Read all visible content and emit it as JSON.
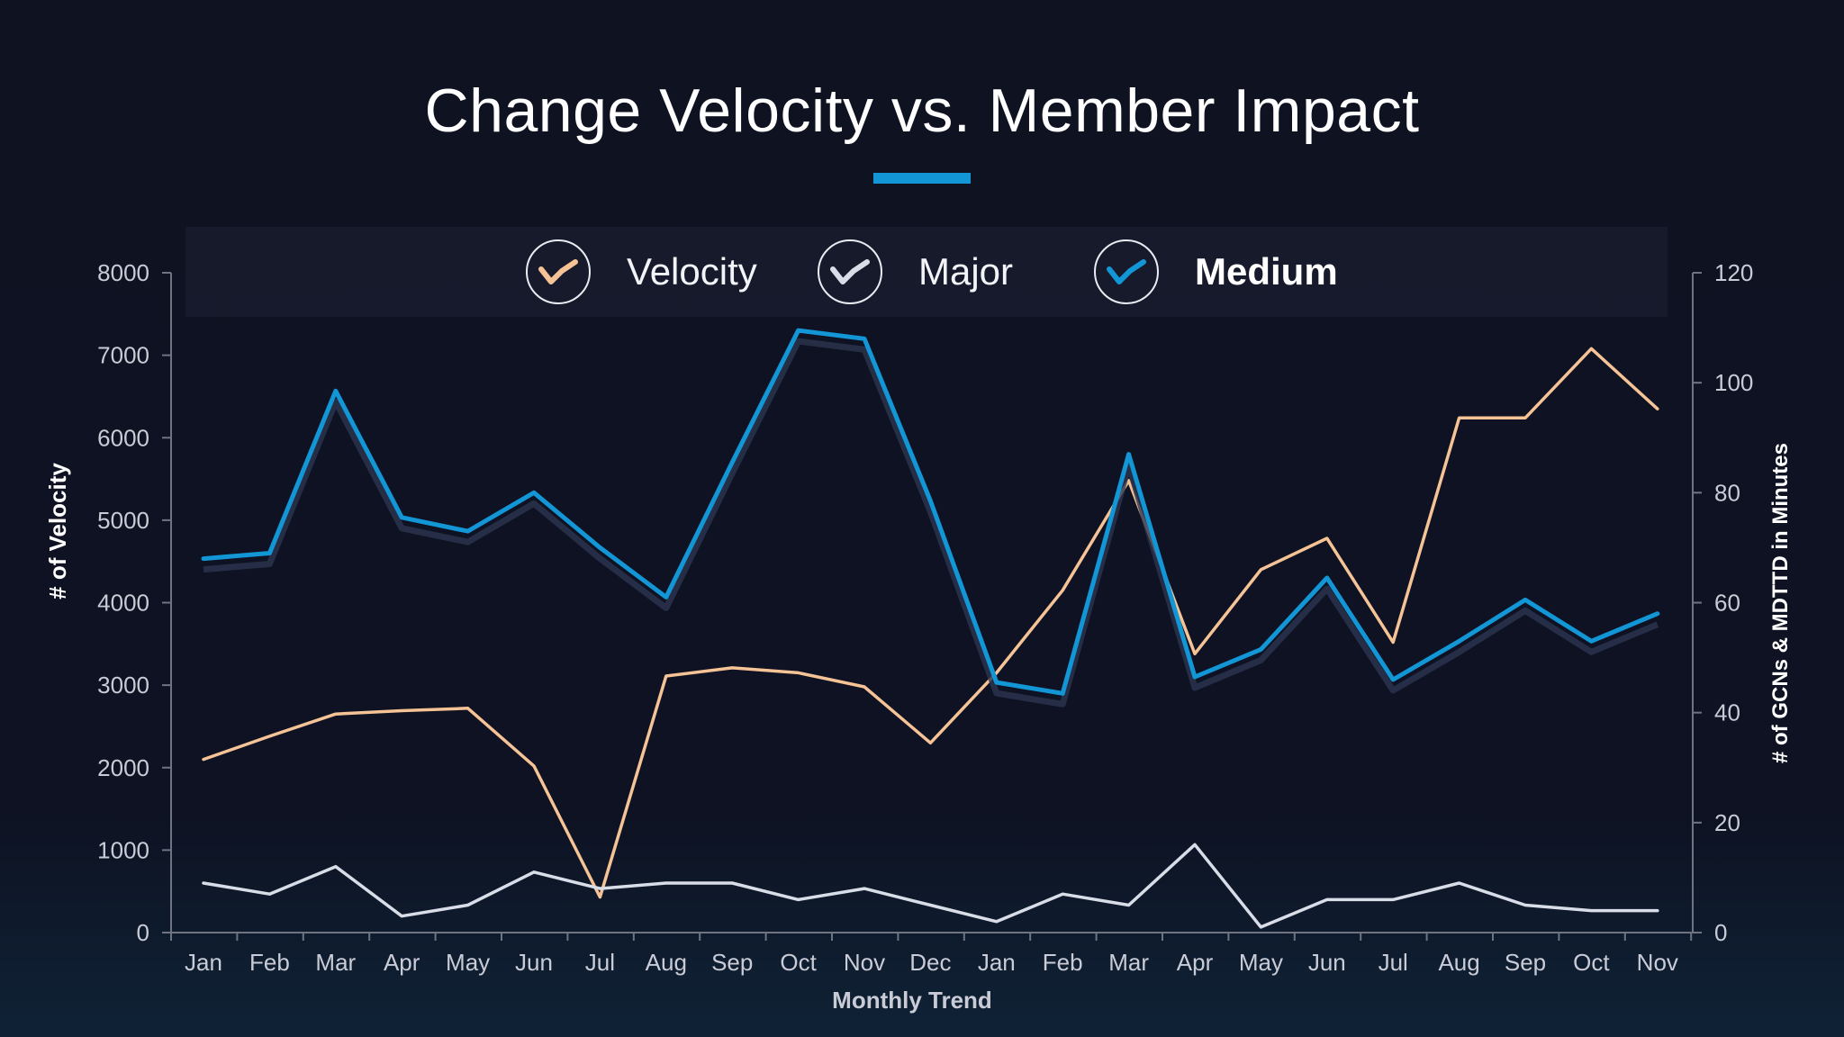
{
  "title": "Change Velocity vs. Member Impact",
  "legend": [
    {
      "label": "Velocity",
      "color": "#f5c396",
      "icon": "velocity-line-icon"
    },
    {
      "label": "Major",
      "color": "#d8dde8",
      "icon": "major-line-icon"
    },
    {
      "label": "Medium",
      "color": "#1296d6",
      "icon": "medium-line-icon"
    }
  ],
  "chart_data": {
    "type": "line",
    "title": "Change Velocity vs. Member Impact",
    "xlabel": "Monthly Trend",
    "ylabel": "# of Velocity",
    "y2label": "# of GCNs & MDTTD in Minutes",
    "categories": [
      "Jan",
      "Feb",
      "Mar",
      "Apr",
      "May",
      "Jun",
      "Jul",
      "Aug",
      "Sep",
      "Oct",
      "Nov",
      "Dec",
      "Jan",
      "Feb",
      "Mar",
      "Apr",
      "May",
      "Jun",
      "Jul",
      "Aug",
      "Sep",
      "Oct",
      "Nov"
    ],
    "ylim": [
      0,
      8000
    ],
    "y_ticks": [
      "0",
      "1000",
      "2000",
      "3000",
      "4000",
      "5000",
      "6000",
      "7000",
      "8000"
    ],
    "y2lim": [
      0,
      120
    ],
    "y2_ticks": [
      "0",
      "20",
      "40",
      "60",
      "80",
      "100",
      "120"
    ],
    "grid": false,
    "legend_position": "top-center",
    "series": [
      {
        "name": "Velocity",
        "axis": "left",
        "color": "#f5c396",
        "values": [
          2100,
          2380,
          2650,
          2690,
          2720,
          2020,
          430,
          3110,
          3210,
          3150,
          2980,
          2300,
          3150,
          4150,
          5480,
          3380,
          4400,
          4780,
          3520,
          6240,
          6240,
          7080,
          6350
        ]
      },
      {
        "name": "Major",
        "axis": "right",
        "color": "#d8dde8",
        "values": [
          9,
          7,
          12,
          3,
          5,
          11,
          8,
          9,
          9,
          6,
          8,
          5,
          2,
          7,
          5,
          16,
          1,
          6,
          6,
          9,
          5,
          4,
          4
        ]
      },
      {
        "name": "Medium",
        "axis": "right",
        "color": "#1296d6",
        "values": [
          68,
          69,
          98.5,
          75.5,
          73,
          80,
          70,
          61,
          85.5,
          109.5,
          108,
          78.5,
          45.5,
          43.5,
          87,
          46.5,
          51.5,
          64.5,
          46,
          53,
          60.5,
          53,
          58
        ]
      }
    ]
  }
}
